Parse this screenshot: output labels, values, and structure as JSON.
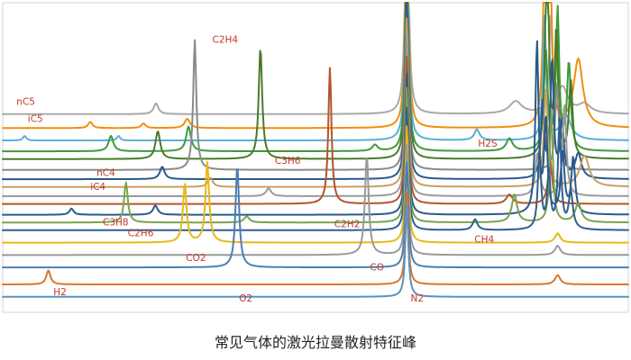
{
  "title": "常见气体的激光拉曼散射特征峰",
  "label_color": "#c0392b",
  "chart_data": {
    "type": "line",
    "title": "常见气体的激光拉曼散射特征峰",
    "xlabel": "",
    "ylabel": "",
    "xlim": [
      0,
      100
    ],
    "ylim": [
      0,
      100
    ],
    "grid": false,
    "legend": "none",
    "series_note": "stacked Raman spectra, one trace per gas, vertically offset",
    "series": [
      {
        "name": "nC5",
        "color": "#a9a9a9",
        "baseline": 64,
        "peaks": [
          {
            "x": 24.5,
            "h": 3.5,
            "w": 0.45
          },
          {
            "x": 64.6,
            "h": 95,
            "w": 0.28
          },
          {
            "x": 82,
            "h": 4,
            "w": 1.2
          },
          {
            "x": 87.6,
            "h": 30,
            "w": 0.3
          },
          {
            "x": 89.5,
            "h": 8,
            "w": 1.0
          },
          {
            "x": 93,
            "h": 3,
            "w": 1.2
          }
        ]
      },
      {
        "name": "iC5",
        "color": "#f28e0c",
        "baseline": 59.5,
        "peaks": [
          {
            "x": 14,
            "h": 2,
            "w": 0.4
          },
          {
            "x": 22.5,
            "h": 1.5,
            "w": 0.4
          },
          {
            "x": 29.5,
            "h": 3,
            "w": 0.5
          },
          {
            "x": 64.6,
            "h": 85,
            "w": 0.28
          },
          {
            "x": 86.7,
            "h": 70,
            "w": 0.3
          },
          {
            "x": 87.5,
            "h": 60,
            "w": 0.28
          },
          {
            "x": 92,
            "h": 22,
            "w": 0.9
          }
        ]
      },
      {
        "name": "H2S",
        "color": "#5aafd6",
        "baseline": 55.5,
        "peaks": [
          {
            "x": 3.5,
            "h": 1.5,
            "w": 0.3
          },
          {
            "x": 18.5,
            "h": 1.5,
            "w": 0.3
          },
          {
            "x": 64.6,
            "h": 80,
            "w": 0.28
          },
          {
            "x": 75.8,
            "h": 3.5,
            "w": 0.5
          },
          {
            "x": 86.6,
            "h": 40,
            "w": 0.3
          },
          {
            "x": 90,
            "h": 8,
            "w": 1.0
          }
        ]
      },
      {
        "name": "C2H4",
        "color": "#3e9a3a",
        "baseline": 52,
        "peaks": [
          {
            "x": 17.3,
            "h": 5,
            "w": 0.45
          },
          {
            "x": 29.7,
            "h": 8,
            "w": 0.45
          },
          {
            "x": 59.5,
            "h": 2,
            "w": 0.5
          },
          {
            "x": 64.6,
            "h": 72,
            "w": 0.28
          },
          {
            "x": 81,
            "h": 4,
            "w": 0.6
          },
          {
            "x": 86.8,
            "h": 32,
            "w": 0.35
          },
          {
            "x": 88.7,
            "h": 45,
            "w": 0.3
          },
          {
            "x": 90.5,
            "h": 28,
            "w": 0.35
          }
        ]
      },
      {
        "name": "C2H4",
        "color": "#4a7a2a",
        "baseline": 49.5,
        "peaks": [
          {
            "x": 24.8,
            "h": 9,
            "w": 0.45
          },
          {
            "x": 41.2,
            "h": 36,
            "w": 0.33
          },
          {
            "x": 64.6,
            "h": 70,
            "w": 0.28
          },
          {
            "x": 87.0,
            "h": 80,
            "w": 0.3
          },
          {
            "x": 88.5,
            "h": 40,
            "w": 0.3
          },
          {
            "x": 90.8,
            "h": 25,
            "w": 0.35
          }
        ]
      },
      {
        "name": "C3H6",
        "color": "#8a8a8a",
        "baseline": 46,
        "peaks": [
          {
            "x": 30.7,
            "h": 42,
            "w": 0.3
          },
          {
            "x": 64.6,
            "h": 60,
            "w": 0.28
          },
          {
            "x": 88.6,
            "h": 28,
            "w": 0.35
          }
        ]
      },
      {
        "name": "C3H6",
        "color": "#2a5a8a",
        "baseline": 43,
        "peaks": [
          {
            "x": 25.5,
            "h": 4,
            "w": 0.45
          },
          {
            "x": 64.6,
            "h": 60,
            "w": 0.28
          },
          {
            "x": 86.3,
            "h": 24,
            "w": 0.3
          },
          {
            "x": 87.8,
            "h": 38,
            "w": 0.3
          },
          {
            "x": 89.4,
            "h": 18,
            "w": 0.35
          },
          {
            "x": 92,
            "h": 8,
            "w": 0.6
          }
        ]
      },
      {
        "name": "nC4",
        "color": "#c8a060",
        "baseline": 40.5,
        "peaks": [
          {
            "x": 33.2,
            "h": 3,
            "w": 0.45
          },
          {
            "x": 64.6,
            "h": 55,
            "w": 0.28
          },
          {
            "x": 86.8,
            "h": 32,
            "w": 0.35
          },
          {
            "x": 93,
            "h": 10,
            "w": 0.9
          }
        ]
      },
      {
        "name": "iC4",
        "color": "#9a9a9a",
        "baseline": 37.5,
        "peaks": [
          {
            "x": 42.5,
            "h": 2.5,
            "w": 0.5
          },
          {
            "x": 64.6,
            "h": 52,
            "w": 0.28
          },
          {
            "x": 85.5,
            "h": 14,
            "w": 0.4
          },
          {
            "x": 89.8,
            "h": 30,
            "w": 0.35
          }
        ]
      },
      {
        "name": "C2H2",
        "color": "#b5532a",
        "baseline": 35,
        "peaks": [
          {
            "x": 52.3,
            "h": 44,
            "w": 0.3
          },
          {
            "x": 64.6,
            "h": 48,
            "w": 0.28
          },
          {
            "x": 81,
            "h": 3,
            "w": 0.6
          },
          {
            "x": 87.5,
            "h": 14,
            "w": 0.4
          }
        ]
      },
      {
        "name": "C3H8",
        "color": "#2a5a8a",
        "baseline": 31.5,
        "peaks": [
          {
            "x": 11,
            "h": 2,
            "w": 0.4
          },
          {
            "x": 24.4,
            "h": 3,
            "w": 0.45
          },
          {
            "x": 64.6,
            "h": 46,
            "w": 0.28
          },
          {
            "x": 85.4,
            "h": 55,
            "w": 0.3
          },
          {
            "x": 86.8,
            "h": 30,
            "w": 0.3
          },
          {
            "x": 89.5,
            "h": 20,
            "w": 0.35
          },
          {
            "x": 91.2,
            "h": 18,
            "w": 0.35
          }
        ]
      },
      {
        "name": "C2H6",
        "color": "#78a450",
        "baseline": 29,
        "peaks": [
          {
            "x": 19.7,
            "h": 13,
            "w": 0.35
          },
          {
            "x": 39,
            "h": 2,
            "w": 0.5
          },
          {
            "x": 64.6,
            "h": 44,
            "w": 0.28
          },
          {
            "x": 81.8,
            "h": 9,
            "w": 0.5
          },
          {
            "x": 87.7,
            "h": 36,
            "w": 0.3
          },
          {
            "x": 92,
            "h": 6,
            "w": 0.6
          }
        ]
      },
      {
        "name": "CH4",
        "color": "#2f5f8f",
        "baseline": 26.5,
        "peaks": [
          {
            "x": 64.6,
            "h": 40,
            "w": 0.28
          },
          {
            "x": 75.5,
            "h": 3.5,
            "w": 0.45
          },
          {
            "x": 85.8,
            "h": 26,
            "w": 0.3
          },
          {
            "x": 87.3,
            "h": 18,
            "w": 0.3
          },
          {
            "x": 89.0,
            "h": 35,
            "w": 0.3
          },
          {
            "x": 90.8,
            "h": 12,
            "w": 0.4
          }
        ]
      },
      {
        "name": "CO2",
        "color": "#e8b818",
        "baseline": 22.5,
        "peaks": [
          {
            "x": 29.1,
            "h": 19,
            "w": 0.35
          },
          {
            "x": 32.7,
            "h": 26,
            "w": 0.35
          },
          {
            "x": 64.6,
            "h": 38,
            "w": 0.28
          },
          {
            "x": 88.7,
            "h": 3,
            "w": 0.5
          }
        ]
      },
      {
        "name": "CO",
        "color": "#9a9a9a",
        "baseline": 18.5,
        "peaks": [
          {
            "x": 58.2,
            "h": 32,
            "w": 0.35
          },
          {
            "x": 64.6,
            "h": 36,
            "w": 0.28
          },
          {
            "x": 88.7,
            "h": 3,
            "w": 0.5
          }
        ]
      },
      {
        "name": "O2",
        "color": "#4a7fb5",
        "baseline": 14.5,
        "peaks": [
          {
            "x": 37.5,
            "h": 33,
            "w": 0.35
          },
          {
            "x": 64.6,
            "h": 34,
            "w": 0.28
          }
        ]
      },
      {
        "name": "H2",
        "color": "#d9772b",
        "baseline": 9,
        "peaks": [
          {
            "x": 7.3,
            "h": 4.5,
            "w": 0.4
          },
          {
            "x": 64.6,
            "h": 30,
            "w": 0.28
          },
          {
            "x": 88.7,
            "h": 3,
            "w": 0.5
          }
        ]
      },
      {
        "name": "N2",
        "color": "#5a93bf",
        "baseline": 5,
        "peaks": [
          {
            "x": 64.6,
            "h": 30,
            "w": 0.28
          }
        ]
      }
    ],
    "peak_labels": [
      {
        "text": "nC5",
        "x": 2.2,
        "y": 67
      },
      {
        "text": "iC5",
        "x": 4,
        "y": 61.5
      },
      {
        "text": "C2H4",
        "x": 33.5,
        "y": 87
      },
      {
        "text": "C3H6",
        "x": 43.5,
        "y": 48
      },
      {
        "text": "H2S",
        "x": 76,
        "y": 53.5
      },
      {
        "text": "nC4",
        "x": 15,
        "y": 44
      },
      {
        "text": "iC4",
        "x": 14,
        "y": 39.5
      },
      {
        "text": "C2H2",
        "x": 53,
        "y": 27.5
      },
      {
        "text": "C3H8",
        "x": 16,
        "y": 28
      },
      {
        "text": "C2H6",
        "x": 20,
        "y": 24.5
      },
      {
        "text": "CH4",
        "x": 75.4,
        "y": 22.5
      },
      {
        "text": "CO2",
        "x": 29.3,
        "y": 16.5
      },
      {
        "text": "CO",
        "x": 58.7,
        "y": 13.5
      },
      {
        "text": "O2",
        "x": 37.8,
        "y": 3.5
      },
      {
        "text": "H2",
        "x": 8.1,
        "y": 5.5
      },
      {
        "text": "N2",
        "x": 65.2,
        "y": 3.5
      }
    ]
  }
}
